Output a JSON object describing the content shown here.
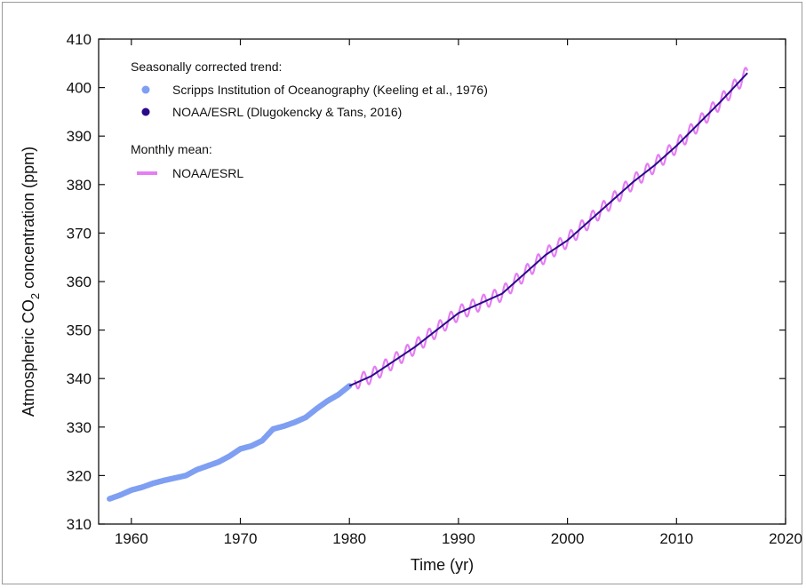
{
  "chart_data": {
    "type": "line",
    "xlabel": "Time (yr)",
    "ylabel": "Atmospheric CO",
    "ylabel_sub": "2",
    "ylabel_suffix": " concentration (ppm)",
    "xlim": [
      1957,
      2020
    ],
    "ylim": [
      310,
      410
    ],
    "xticks": [
      1960,
      1970,
      1980,
      1990,
      2000,
      2010,
      2020
    ],
    "yticks": [
      310,
      320,
      330,
      340,
      350,
      360,
      370,
      380,
      390,
      400,
      410
    ],
    "grid": false,
    "legend": {
      "placement": "top-left",
      "group1_title": "Seasonally corrected trend:",
      "group2_title": "Monthly mean:"
    },
    "colors": {
      "scripps": "#7f9ff2",
      "noaa_trend": "#2a0a8a",
      "noaa_monthly": "#e57ef2"
    },
    "series": [
      {
        "name": "Scripps Institution of Oceanography (Keeling et al., 1976)",
        "style": "dots",
        "x": [
          1958.0,
          1959.0,
          1960.0,
          1961.0,
          1962.0,
          1963.0,
          1964.0,
          1965.0,
          1966.0,
          1967.0,
          1968.0,
          1969.0,
          1970.0,
          1971.0,
          1972.0,
          1973.0,
          1974.0,
          1975.0,
          1976.0,
          1977.0,
          1978.0,
          1979.0,
          1980.0
        ],
        "y": [
          315.2,
          316.0,
          317.0,
          317.6,
          318.4,
          319.0,
          319.5,
          320.0,
          321.2,
          322.0,
          322.8,
          324.0,
          325.5,
          326.1,
          327.2,
          329.6,
          330.2,
          331.0,
          332.0,
          333.8,
          335.4,
          336.7,
          338.5
        ]
      },
      {
        "name": "NOAA/ESRL (Dlugokencky & Tans, 2016)",
        "style": "line",
        "x": [
          1980.0,
          1982.0,
          1984.0,
          1986.0,
          1988.0,
          1990.0,
          1992.0,
          1994.0,
          1996.0,
          1998.0,
          2000.0,
          2002.0,
          2004.0,
          2006.0,
          2008.0,
          2010.0,
          2012.0,
          2014.0,
          2016.5
        ],
        "y": [
          338.5,
          340.5,
          343.5,
          346.5,
          350.0,
          353.5,
          355.5,
          357.5,
          361.5,
          365.5,
          368.5,
          372.5,
          376.5,
          380.5,
          384.0,
          388.0,
          392.5,
          397.0,
          403.0
        ]
      },
      {
        "name": "NOAA/ESRL",
        "style": "monthly-line",
        "seasonal_amplitude_ppm": 1.5,
        "x": [
          1980.5,
          1982.0,
          1984.0,
          1986.0,
          1988.0,
          1990.0,
          1992.0,
          1994.0,
          1996.0,
          1998.0,
          2000.0,
          2002.0,
          2004.0,
          2006.0,
          2008.0,
          2010.0,
          2012.0,
          2014.0,
          2016.5
        ],
        "y": [
          339.2,
          340.5,
          343.5,
          346.5,
          350.0,
          353.5,
          355.5,
          357.5,
          361.5,
          365.5,
          368.5,
          372.5,
          376.5,
          380.5,
          384.0,
          388.0,
          392.5,
          397.0,
          403.0
        ]
      }
    ]
  }
}
